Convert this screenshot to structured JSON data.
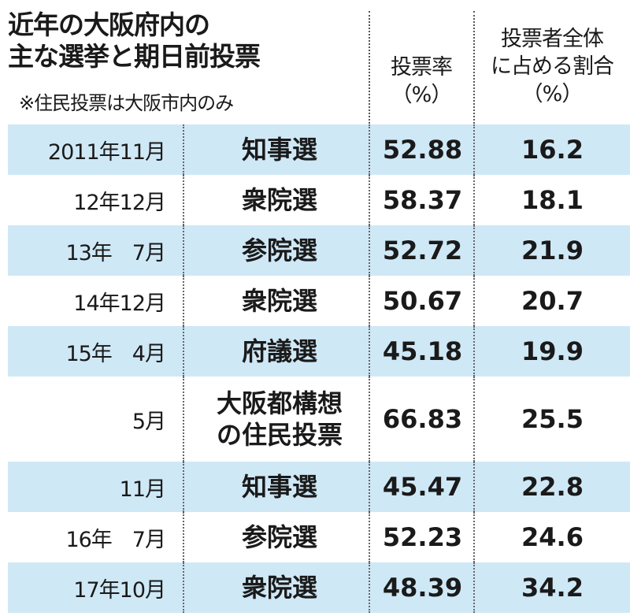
{
  "title_line1": "近年の大阪府内の",
  "title_line2": "主な選挙と期日前投票",
  "note": "※住民投票は大阪市内のみ",
  "col_rate_line1": "投票率",
  "col_rate_line2": "（%）",
  "col_share_line1": "投票者全体",
  "col_share_line2": "に占める割合",
  "col_share_line3": "（%）",
  "chart_data": {
    "type": "table",
    "title": "近年の大阪府内の主な選挙と期日前投票",
    "note": "※住民投票は大阪市内のみ",
    "columns": [
      "",
      "",
      "投票率（%）",
      "投票者全体に占める割合（%）"
    ],
    "rows": [
      {
        "date": "2011年11月",
        "election": "知事選",
        "rate": "52.88",
        "share": "16.2"
      },
      {
        "date": "12年12月",
        "election": "衆院選",
        "rate": "58.37",
        "share": "18.1"
      },
      {
        "date": "13年　7月",
        "election": "参院選",
        "rate": "52.72",
        "share": "21.9"
      },
      {
        "date": "14年12月",
        "election": "衆院選",
        "rate": "50.67",
        "share": "20.7"
      },
      {
        "date": "15年　4月",
        "election": "府議選",
        "rate": "45.18",
        "share": "19.9"
      },
      {
        "date": "5月",
        "election": "大阪都構想の住民投票",
        "election_line1": "大阪都構想",
        "election_line2": "の住民投票",
        "rate": "66.83",
        "share": "25.5"
      },
      {
        "date": "11月",
        "election": "知事選",
        "rate": "45.47",
        "share": "22.8"
      },
      {
        "date": "16年　7月",
        "election": "参院選",
        "rate": "52.23",
        "share": "24.6"
      },
      {
        "date": "17年10月",
        "election": "衆院選",
        "rate": "48.39",
        "share": "34.2"
      }
    ],
    "shade_color": "#cfe8f6"
  }
}
